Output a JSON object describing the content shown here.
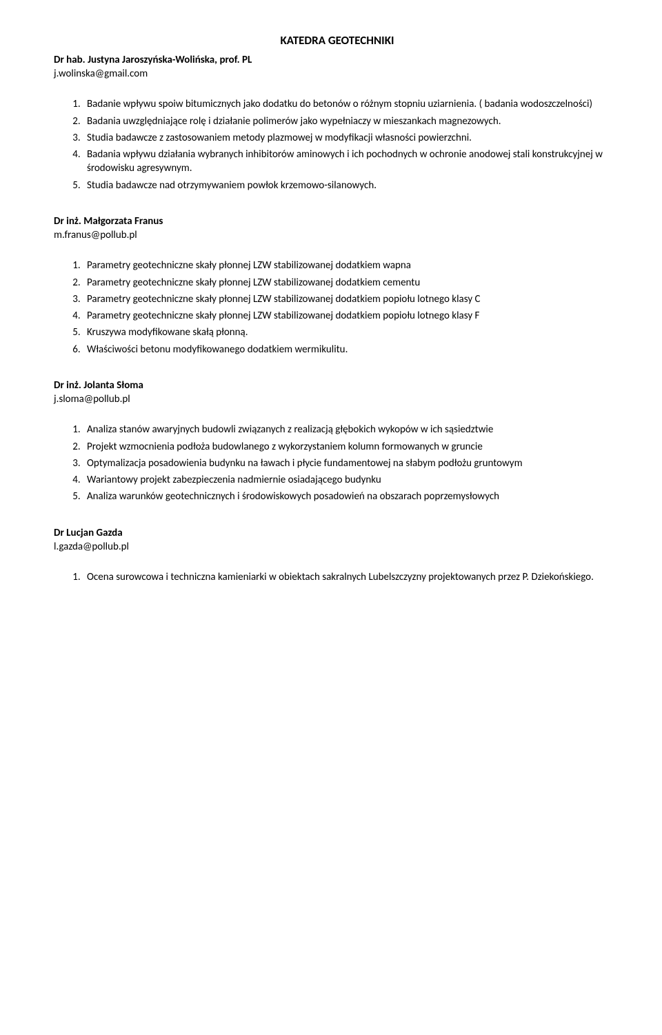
{
  "page": {
    "title": "KATEDRA GEOTECHNIKI",
    "text_color": "#000000",
    "background_color": "#ffffff",
    "font_family": "Calibri, Arial, sans-serif",
    "body_fontsize_pt": 11,
    "heading_fontsize_pt": 12
  },
  "sections": [
    {
      "author": "Dr hab. Justyna Jaroszyńska-Wolińska, prof. PL",
      "email": "j.wolinska@gmail.com",
      "items": [
        "Badanie wpływu spoiw bitumicznych jako dodatku do betonów o różnym stopniu uziarnienia. ( badania wodoszczelności)",
        "Badania uwzględniające rolę i działanie polimerów jako wypełniaczy w mieszankach magnezowych.",
        "Studia badawcze z zastosowaniem metody plazmowej w modyfikacji własności powierzchni.",
        "Badania wpływu działania wybranych inhibitorów aminowych i ich pochodnych w ochronie anodowej stali konstrukcyjnej w środowisku agresywnym.",
        "Studia badawcze nad otrzymywaniem powłok krzemowo-silanowych."
      ]
    },
    {
      "author": "Dr inż. Małgorzata Franus",
      "email": "m.franus@pollub.pl",
      "items": [
        "Parametry geotechniczne skały płonnej LZW stabilizowanej dodatkiem wapna",
        "Parametry geotechniczne skały płonnej LZW stabilizowanej dodatkiem cementu",
        "Parametry geotechniczne skały płonnej LZW stabilizowanej dodatkiem popiołu lotnego klasy C",
        "Parametry geotechniczne skały płonnej LZW stabilizowanej dodatkiem popiołu lotnego klasy F",
        "Kruszywa modyfikowane skałą płonną.",
        "Właściwości betonu modyfikowanego dodatkiem wermikulitu."
      ]
    },
    {
      "author": "Dr inż. Jolanta Słoma",
      "email": "j.sloma@pollub.pl",
      "items": [
        "Analiza stanów awaryjnych budowli związanych z realizacją głębokich wykopów w ich sąsiedztwie",
        "Projekt wzmocnienia podłoża budowlanego z wykorzystaniem kolumn formowanych w gruncie",
        "Optymalizacja posadowienia budynku na ławach i płycie fundamentowej na słabym podłożu gruntowym",
        "Wariantowy projekt  zabezpieczenia nadmiernie osiadającego budynku",
        "Analiza warunków geotechnicznych i środowiskowych posadowień na obszarach poprzemysłowych"
      ]
    },
    {
      "author": "Dr  Lucjan Gazda",
      "email": "l.gazda@pollub.pl",
      "items": [
        "Ocena surowcowa i techniczna kamieniarki w obiektach sakralnych Lubelszczyzny projektowanych przez P. Dziekońskiego."
      ]
    }
  ]
}
